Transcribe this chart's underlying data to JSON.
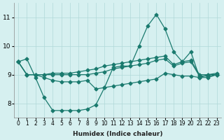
{
  "xlabel": "Humidex (Indice chaleur)",
  "ylabel": "",
  "bg_color": "#d6f0f0",
  "line_color": "#1a7a6e",
  "grid_color": "#b0d8d8",
  "xlim": [
    -0.5,
    23.5
  ],
  "ylim": [
    7.5,
    11.5
  ],
  "yticks": [
    8,
    9,
    10,
    11
  ],
  "xtick_labels": [
    "0",
    "1",
    "2",
    "3",
    "4",
    "5",
    "6",
    "7",
    "8",
    "9",
    "10",
    "11",
    "12",
    "13",
    "14",
    "15",
    "16",
    "17",
    "18",
    "19",
    "20",
    "21",
    "22",
    "23"
  ],
  "series": [
    {
      "x": [
        0,
        1,
        2,
        3,
        4,
        5,
        6,
        7,
        8,
        9,
        10,
        11,
        12,
        13,
        14,
        15,
        16,
        17,
        18,
        19,
        20,
        21,
        22,
        23
      ],
      "y": [
        9.45,
        9.55,
        8.9,
        8.2,
        7.75,
        7.75,
        7.75,
        7.75,
        7.8,
        7.95,
        8.55,
        9.25,
        9.3,
        9.3,
        10.0,
        10.7,
        11.1,
        10.6,
        9.8,
        9.45,
        9.8,
        8.9,
        9.0,
        9.0
      ]
    },
    {
      "x": [
        0,
        1,
        2,
        3,
        4,
        5,
        6,
        7,
        8,
        9,
        10,
        11,
        12,
        13,
        14,
        15,
        16,
        17,
        18,
        19,
        20,
        21,
        22,
        23
      ],
      "y": [
        9.45,
        9.0,
        9.0,
        9.0,
        9.05,
        9.05,
        9.05,
        9.1,
        9.15,
        9.2,
        9.3,
        9.35,
        9.4,
        9.45,
        9.5,
        9.55,
        9.6,
        9.65,
        9.35,
        9.45,
        9.5,
        9.0,
        9.0,
        9.05
      ]
    },
    {
      "x": [
        0,
        1,
        2,
        3,
        4,
        5,
        6,
        7,
        8,
        9,
        10,
        11,
        12,
        13,
        14,
        15,
        16,
        17,
        18,
        19,
        20,
        21,
        22,
        23
      ],
      "y": [
        9.45,
        9.0,
        9.0,
        9.0,
        9.0,
        9.0,
        9.0,
        9.0,
        9.0,
        9.05,
        9.1,
        9.2,
        9.25,
        9.3,
        9.35,
        9.4,
        9.5,
        9.55,
        9.3,
        9.4,
        9.45,
        8.95,
        8.95,
        9.0
      ]
    },
    {
      "x": [
        0,
        1,
        2,
        3,
        4,
        5,
        6,
        7,
        8,
        9,
        10,
        11,
        12,
        13,
        14,
        15,
        16,
        17,
        18,
        19,
        20,
        21,
        22,
        23
      ],
      "y": [
        9.45,
        9.0,
        9.0,
        8.9,
        8.8,
        8.75,
        8.75,
        8.75,
        8.8,
        8.5,
        8.55,
        8.6,
        8.65,
        8.7,
        8.75,
        8.8,
        8.85,
        9.05,
        9.0,
        8.95,
        8.95,
        8.9,
        8.9,
        9.0
      ]
    }
  ]
}
